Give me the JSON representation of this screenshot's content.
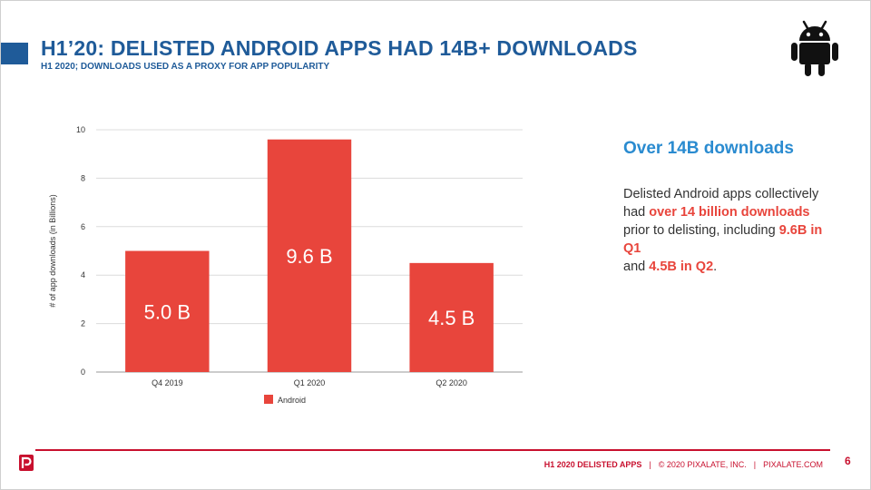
{
  "header": {
    "title": "H1’20: DELISTED ANDROID APPS HAD 14B+ DOWNLOADS",
    "subtitle": "H1 2020; DOWNLOADS USED AS A PROXY FOR APP POPULARITY",
    "icon": "android-icon"
  },
  "chart_data": {
    "type": "bar",
    "categories": [
      "Q4 2019",
      "Q1 2020",
      "Q2 2020"
    ],
    "series": [
      {
        "name": "Android",
        "values": [
          5.0,
          9.6,
          4.5
        ],
        "color": "#e8453c"
      }
    ],
    "data_labels": [
      "5.0 B",
      "9.6 B",
      "4.5 B"
    ],
    "title": "",
    "xlabel": "",
    "ylabel": "# of app downloads (in Billions)",
    "ylim": [
      0,
      10
    ],
    "yticks": [
      "0",
      "2",
      "4",
      "6",
      "8",
      "10"
    ],
    "grid": true,
    "legend": "bottom"
  },
  "callout": {
    "title": "Over 14B downloads",
    "body_1": "Delisted Android apps collectively had ",
    "body_hl_1": "over 14 billion downloads",
    "body_2": " prior to delisting, including ",
    "body_hl_2": "9.6B in Q1",
    "body_3": " and ",
    "body_hl_3": "4.5B in Q2",
    "body_4": "."
  },
  "footer": {
    "report": "H1 2020 DELISTED APPS",
    "separator": "|",
    "copyright": "© 2020 PIXALATE, INC.",
    "site": "PIXALATE.COM",
    "page_number": "6",
    "logo": "pixalate-logo-icon"
  },
  "colors": {
    "brand_blue": "#1f5b99",
    "callout_blue": "#2a8bd0",
    "bar_red": "#e8453c",
    "footer_red": "#c8102e"
  }
}
